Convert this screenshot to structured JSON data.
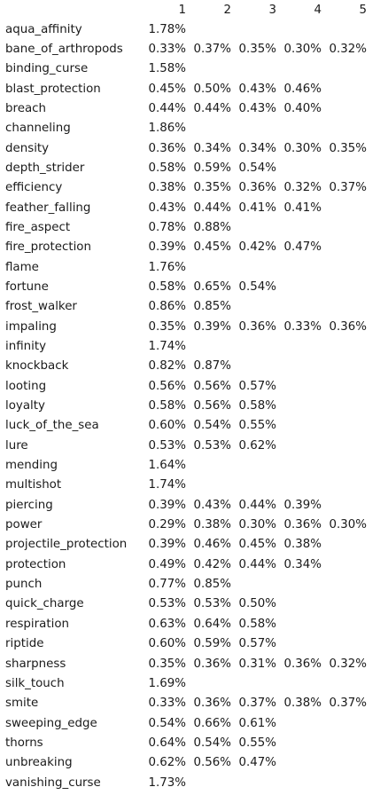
{
  "columns": [
    "1",
    "2",
    "3",
    "4",
    "5"
  ],
  "rows": [
    {
      "name": "aqua_affinity",
      "values": [
        "1.78%"
      ]
    },
    {
      "name": "bane_of_arthropods",
      "values": [
        "0.33%",
        "0.37%",
        "0.35%",
        "0.30%",
        "0.32%"
      ]
    },
    {
      "name": "binding_curse",
      "values": [
        "1.58%"
      ]
    },
    {
      "name": "blast_protection",
      "values": [
        "0.45%",
        "0.50%",
        "0.43%",
        "0.46%"
      ]
    },
    {
      "name": "breach",
      "values": [
        "0.44%",
        "0.44%",
        "0.43%",
        "0.40%"
      ]
    },
    {
      "name": "channeling",
      "values": [
        "1.86%"
      ]
    },
    {
      "name": "density",
      "values": [
        "0.36%",
        "0.34%",
        "0.34%",
        "0.30%",
        "0.35%"
      ]
    },
    {
      "name": "depth_strider",
      "values": [
        "0.58%",
        "0.59%",
        "0.54%"
      ]
    },
    {
      "name": "efficiency",
      "values": [
        "0.38%",
        "0.35%",
        "0.36%",
        "0.32%",
        "0.37%"
      ]
    },
    {
      "name": "feather_falling",
      "values": [
        "0.43%",
        "0.44%",
        "0.41%",
        "0.41%"
      ]
    },
    {
      "name": "fire_aspect",
      "values": [
        "0.78%",
        "0.88%"
      ]
    },
    {
      "name": "fire_protection",
      "values": [
        "0.39%",
        "0.45%",
        "0.42%",
        "0.47%"
      ]
    },
    {
      "name": "flame",
      "values": [
        "1.76%"
      ]
    },
    {
      "name": "fortune",
      "values": [
        "0.58%",
        "0.65%",
        "0.54%"
      ]
    },
    {
      "name": "frost_walker",
      "values": [
        "0.86%",
        "0.85%"
      ]
    },
    {
      "name": "impaling",
      "values": [
        "0.35%",
        "0.39%",
        "0.36%",
        "0.33%",
        "0.36%"
      ]
    },
    {
      "name": "infinity",
      "values": [
        "1.74%"
      ]
    },
    {
      "name": "knockback",
      "values": [
        "0.82%",
        "0.87%"
      ]
    },
    {
      "name": "looting",
      "values": [
        "0.56%",
        "0.56%",
        "0.57%"
      ]
    },
    {
      "name": "loyalty",
      "values": [
        "0.58%",
        "0.56%",
        "0.58%"
      ]
    },
    {
      "name": "luck_of_the_sea",
      "values": [
        "0.60%",
        "0.54%",
        "0.55%"
      ]
    },
    {
      "name": "lure",
      "values": [
        "0.53%",
        "0.53%",
        "0.62%"
      ]
    },
    {
      "name": "mending",
      "values": [
        "1.64%"
      ]
    },
    {
      "name": "multishot",
      "values": [
        "1.74%"
      ]
    },
    {
      "name": "piercing",
      "values": [
        "0.39%",
        "0.43%",
        "0.44%",
        "0.39%"
      ]
    },
    {
      "name": "power",
      "values": [
        "0.29%",
        "0.38%",
        "0.30%",
        "0.36%",
        "0.30%"
      ]
    },
    {
      "name": "projectile_protection",
      "values": [
        "0.39%",
        "0.46%",
        "0.45%",
        "0.38%"
      ]
    },
    {
      "name": "protection",
      "values": [
        "0.49%",
        "0.42%",
        "0.44%",
        "0.34%"
      ]
    },
    {
      "name": "punch",
      "values": [
        "0.77%",
        "0.85%"
      ]
    },
    {
      "name": "quick_charge",
      "values": [
        "0.53%",
        "0.53%",
        "0.50%"
      ]
    },
    {
      "name": "respiration",
      "values": [
        "0.63%",
        "0.64%",
        "0.58%"
      ]
    },
    {
      "name": "riptide",
      "values": [
        "0.60%",
        "0.59%",
        "0.57%"
      ]
    },
    {
      "name": "sharpness",
      "values": [
        "0.35%",
        "0.36%",
        "0.31%",
        "0.36%",
        "0.32%"
      ]
    },
    {
      "name": "silk_touch",
      "values": [
        "1.69%"
      ]
    },
    {
      "name": "smite",
      "values": [
        "0.33%",
        "0.36%",
        "0.37%",
        "0.38%",
        "0.37%"
      ]
    },
    {
      "name": "sweeping_edge",
      "values": [
        "0.54%",
        "0.66%",
        "0.61%"
      ]
    },
    {
      "name": "thorns",
      "values": [
        "0.64%",
        "0.54%",
        "0.55%"
      ]
    },
    {
      "name": "unbreaking",
      "values": [
        "0.62%",
        "0.56%",
        "0.47%"
      ]
    },
    {
      "name": "vanishing_curse",
      "values": [
        "1.73%"
      ]
    }
  ]
}
